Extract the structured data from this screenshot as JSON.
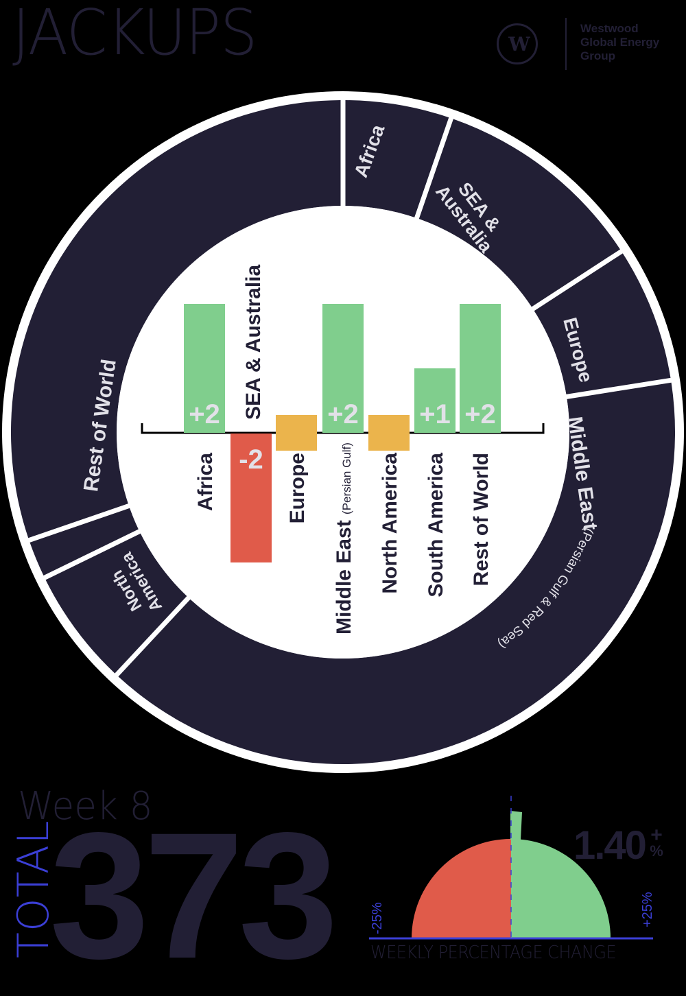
{
  "header": {
    "title": "JACKUPS",
    "logo": {
      "line1": "Westwood",
      "line2": "Global Energy",
      "line3": "Group",
      "mark": "W"
    }
  },
  "colors": {
    "navy": "#221f35",
    "green": "#80ce8d",
    "red": "#e05b4a",
    "yellow": "#ebb44c",
    "blue": "#3b3fd6",
    "label_light": "#e2e1e8",
    "background": "#000000",
    "white": "#ffffff"
  },
  "donut": {
    "segments": [
      {
        "name": "Africa",
        "start": 0,
        "end": 19,
        "label_lines": [
          "Africa"
        ]
      },
      {
        "name": "SEA & Australia",
        "start": 19,
        "end": 57,
        "label_lines": [
          "SEA &",
          "Australia"
        ]
      },
      {
        "name": "Europe",
        "start": 57,
        "end": 81,
        "label_lines": [
          "Europe"
        ]
      },
      {
        "name": "Middle East (Persian Gulf & Red Sea)",
        "start": 81,
        "end": 223,
        "label_lines": [
          "Middle East"
        ],
        "sublabel": "(Persian Gulf & Red Sea)"
      },
      {
        "name": "North America",
        "start": 223,
        "end": 244,
        "label_lines": [
          "North",
          "America"
        ]
      },
      {
        "name": "South America",
        "start": 244,
        "end": 251,
        "label_lines": []
      },
      {
        "name": "Rest of World",
        "start": 251,
        "end": 360,
        "label_lines": [
          "Rest of World"
        ]
      }
    ]
  },
  "chart_data": {
    "type": "bar",
    "title": "JACKUPS — weekly change by region",
    "categories": [
      "Africa",
      "SEA & Australia",
      "Europe",
      "Middle East (Persian Gulf)",
      "North America",
      "South America",
      "Rest of World"
    ],
    "values": [
      2,
      -2,
      0,
      2,
      0,
      1,
      2
    ],
    "value_labels": [
      "+2",
      "-2",
      "",
      "+2",
      "",
      "+1",
      "+2"
    ],
    "xlabel": "",
    "ylabel": "",
    "ylim": [
      -2,
      2
    ],
    "grid": false,
    "donut_share_degrees": {
      "Africa": 19,
      "SEA & Australia": 38,
      "Europe": 24,
      "Middle East (Persian Gulf & Red Sea)": 142,
      "North America": 21,
      "South America": 7,
      "Rest of World": 109
    },
    "total": 373,
    "week": 8,
    "weekly_percentage_change": 1.4,
    "gauge_range": [
      -25,
      25
    ]
  },
  "bars": {
    "axis_label_sub": "(Persian Gulf)",
    "items": [
      {
        "label": "Africa",
        "value_label": "+2",
        "type": "pos"
      },
      {
        "label": "SEA & Australia",
        "value_label": "-2",
        "type": "neg"
      },
      {
        "label": "Europe",
        "value_label": "",
        "type": "zero"
      },
      {
        "label": "Middle East",
        "value_label": "+2",
        "type": "pos"
      },
      {
        "label": "North America",
        "value_label": "",
        "type": "zero"
      },
      {
        "label": "South America",
        "value_label": "+1",
        "type": "pos"
      },
      {
        "label": "Rest of World",
        "value_label": "+2",
        "type": "pos"
      }
    ]
  },
  "summary": {
    "week_label": "Week 8",
    "total_label": "TOTAL",
    "total_value": "373",
    "pct_value": "1.40",
    "pct_plus": "+",
    "pct_sign": "%",
    "gauge_min_label": "-25%",
    "gauge_max_label": "+25%",
    "gauge_caption": "WEEKLY PERCENTAGE CHANGE"
  }
}
